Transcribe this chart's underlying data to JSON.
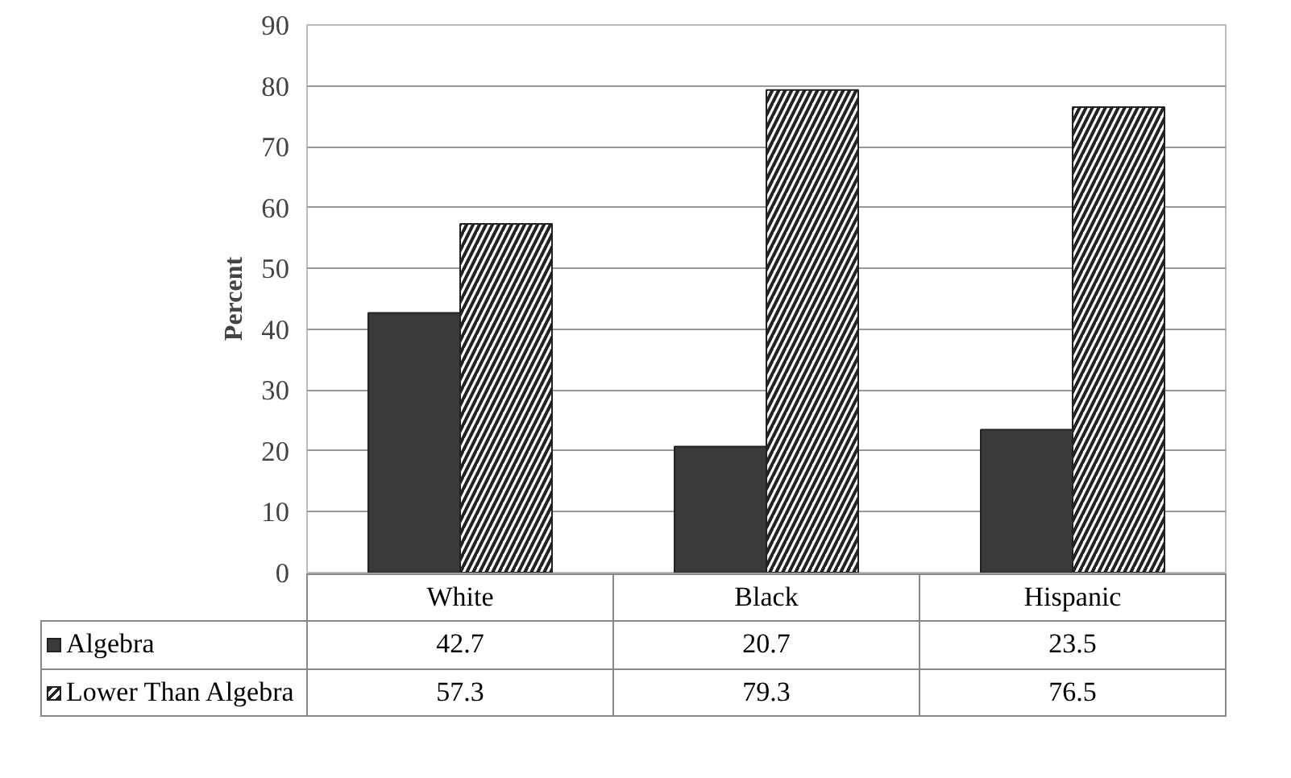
{
  "chart_data": {
    "type": "bar",
    "ylabel": "Percent",
    "categories": [
      "White",
      "Black",
      "Hispanic"
    ],
    "series": [
      {
        "name": "Algebra",
        "color": "#3a3a3a",
        "values": [
          42.7,
          20.7,
          23.5
        ]
      },
      {
        "name": "Lower Than Algebra",
        "color": "#ffffff",
        "values": [
          57.3,
          79.3,
          76.5
        ]
      }
    ],
    "ylim": [
      0,
      90
    ],
    "yticks": [
      0,
      10,
      20,
      30,
      40,
      50,
      60,
      70,
      80,
      90
    ],
    "grid": "y",
    "legend": "bottom",
    "data_labels": true
  }
}
